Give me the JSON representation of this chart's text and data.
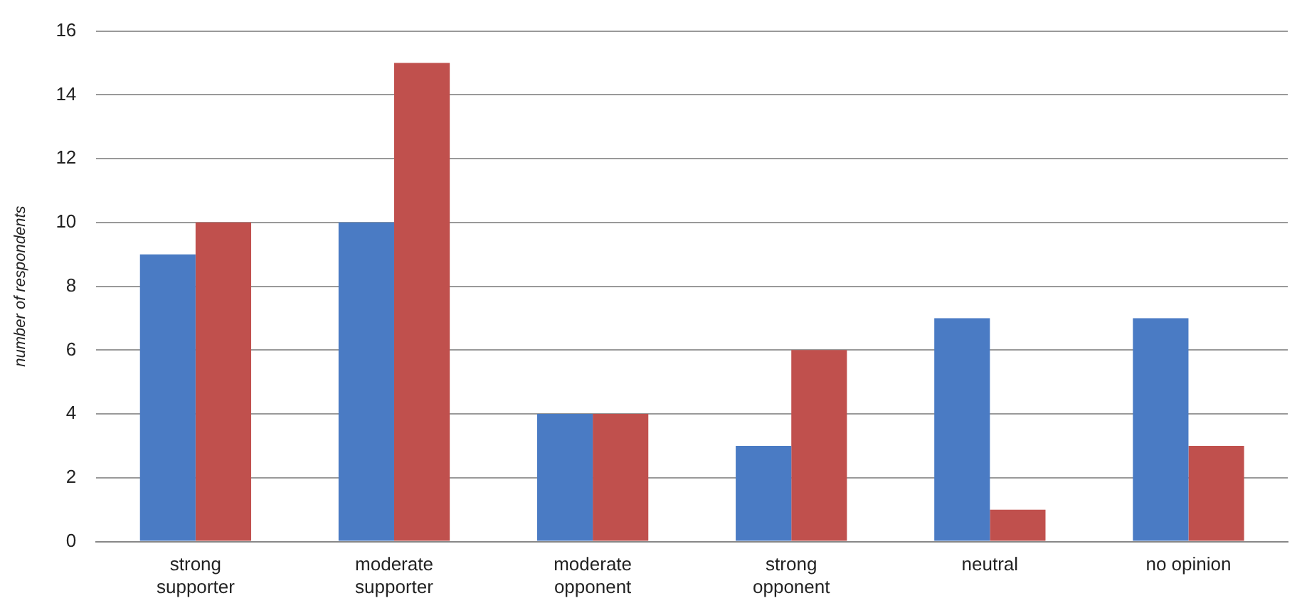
{
  "chart_data": {
    "type": "bar",
    "ylabel": "number of respondents",
    "categories": [
      "strong supporter",
      "moderate supporter",
      "moderate opponent",
      "strong opponent",
      "neutral",
      "no opinion"
    ],
    "series": [
      {
        "color": "#4a7bc4",
        "values": [
          9,
          10,
          4,
          3,
          7,
          7
        ]
      },
      {
        "color": "#c0504d",
        "values": [
          10,
          15,
          4,
          6,
          1,
          3
        ]
      }
    ],
    "ylim": [
      0,
      16
    ],
    "yticks": [
      0,
      2,
      4,
      6,
      8,
      10,
      12,
      14,
      16
    ],
    "grid": "y",
    "legend": false
  }
}
